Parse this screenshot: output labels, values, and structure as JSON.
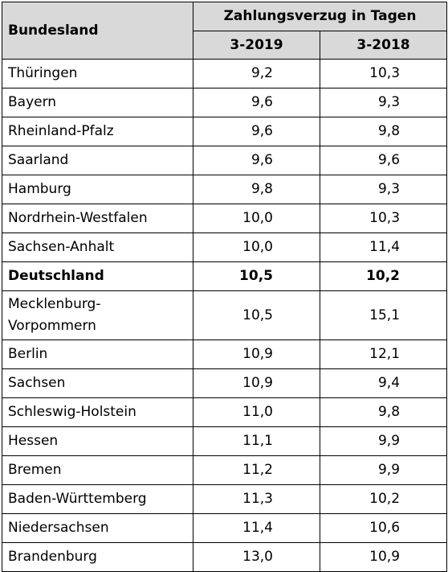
{
  "table": {
    "header": {
      "land_label": "Bundesland",
      "group_label": "Zahlungsverzug in Tagen",
      "year_1": "3-2019",
      "year_2": "3-2018"
    },
    "rows": [
      {
        "land": "Thüringen",
        "v2019": "9,2",
        "v2018": "10,3"
      },
      {
        "land": "Bayern",
        "v2019": "9,6",
        "v2018": "9,3"
      },
      {
        "land": "Rheinland-Pfalz",
        "v2019": "9,6",
        "v2018": "9,8"
      },
      {
        "land": "Saarland",
        "v2019": "9,6",
        "v2018": "9,6"
      },
      {
        "land": "Hamburg",
        "v2019": "9,8",
        "v2018": "9,3"
      },
      {
        "land": "Nordrhein-Westfalen",
        "v2019": "10,0",
        "v2018": "10,3"
      },
      {
        "land": "Sachsen-Anhalt",
        "v2019": "10,0",
        "v2018": "11,4"
      },
      {
        "land": "Deutschland",
        "v2019": "10,5",
        "v2018": "10,2"
      },
      {
        "land_line1": "Mecklenburg-",
        "land_line2": "Vorpommern",
        "v2019": "10,5",
        "v2018": "15,1"
      },
      {
        "land": "Berlin",
        "v2019": "10,9",
        "v2018": "12,1"
      },
      {
        "land": "Sachsen",
        "v2019": "10,9",
        "v2018": "9,4"
      },
      {
        "land": "Schleswig-Holstein",
        "v2019": "11,0",
        "v2018": "9,8"
      },
      {
        "land": "Hessen",
        "v2019": "11,1",
        "v2018": "9,9"
      },
      {
        "land": "Bremen",
        "v2019": "11,2",
        "v2018": "9,9"
      },
      {
        "land": "Baden-Württemberg",
        "v2019": "11,3",
        "v2018": "10,2"
      },
      {
        "land": "Niedersachsen",
        "v2019": "11,4",
        "v2018": "10,6"
      },
      {
        "land": "Brandenburg",
        "v2019": "13,0",
        "v2018": "10,9"
      }
    ],
    "header_fill": "#d9d9d9",
    "border_color": "#000000",
    "highlighted_row": "Deutschland"
  }
}
